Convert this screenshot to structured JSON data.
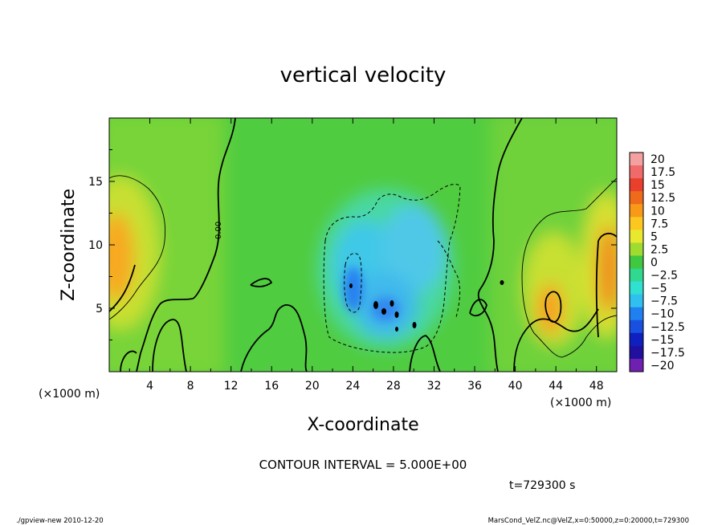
{
  "chart_data": {
    "type": "heatmap",
    "title": "vertical velocity",
    "xlabel": "X-coordinate",
    "ylabel": "Z-coordinate",
    "x_unit": "(×1000 m)",
    "z_unit": "(×1000 m)",
    "xlim": [
      0,
      50
    ],
    "ylim": [
      0,
      20
    ],
    "x_ticks": [
      "4",
      "8",
      "12",
      "16",
      "20",
      "24",
      "28",
      "32",
      "36",
      "40",
      "44",
      "48"
    ],
    "x_tick_values": [
      4,
      8,
      12,
      16,
      20,
      24,
      28,
      32,
      36,
      40,
      44,
      48
    ],
    "y_ticks": [
      "5",
      "10",
      "15"
    ],
    "y_tick_values": [
      5,
      10,
      15
    ],
    "colorbar": {
      "labels": [
        "20",
        "17.5",
        "15",
        "12.5",
        "10",
        "7.5",
        "5",
        "2.5",
        "0",
        "−2.5",
        "−5",
        "−7.5",
        "−10",
        "−12.5",
        "−15",
        "−17.5",
        "−20"
      ],
      "colors": [
        "#f4a0a0",
        "#f06a6a",
        "#e8402c",
        "#f06a1c",
        "#f89a18",
        "#fcc820",
        "#e8e830",
        "#a0dc30",
        "#40c840",
        "#30d890",
        "#30e0d0",
        "#30c0f0",
        "#2080f0",
        "#1850e0",
        "#1020c0",
        "#2010a0",
        "#7020b0"
      ]
    },
    "contour_interval": "CONTOUR INTERVAL = 5.000E+00",
    "contour_label": "0.00",
    "time_label": "t=729300 s",
    "features": [
      {
        "sign": "positive",
        "x_range": [
          0,
          5
        ],
        "z_range": [
          3,
          15
        ],
        "peak": 12.5
      },
      {
        "sign": "negative",
        "x_range": [
          21,
          35
        ],
        "z_range": [
          2,
          15
        ],
        "peak": -12.5
      },
      {
        "sign": "positive",
        "x_range": [
          41,
          50
        ],
        "z_range": [
          1,
          14
        ],
        "peak": 12.5
      }
    ]
  },
  "footer": {
    "left": "./gpview-new   2010-12-20",
    "right": "MarsCond_VelZ.nc@VelZ,x=0:50000,z=0:20000,t=729300"
  }
}
